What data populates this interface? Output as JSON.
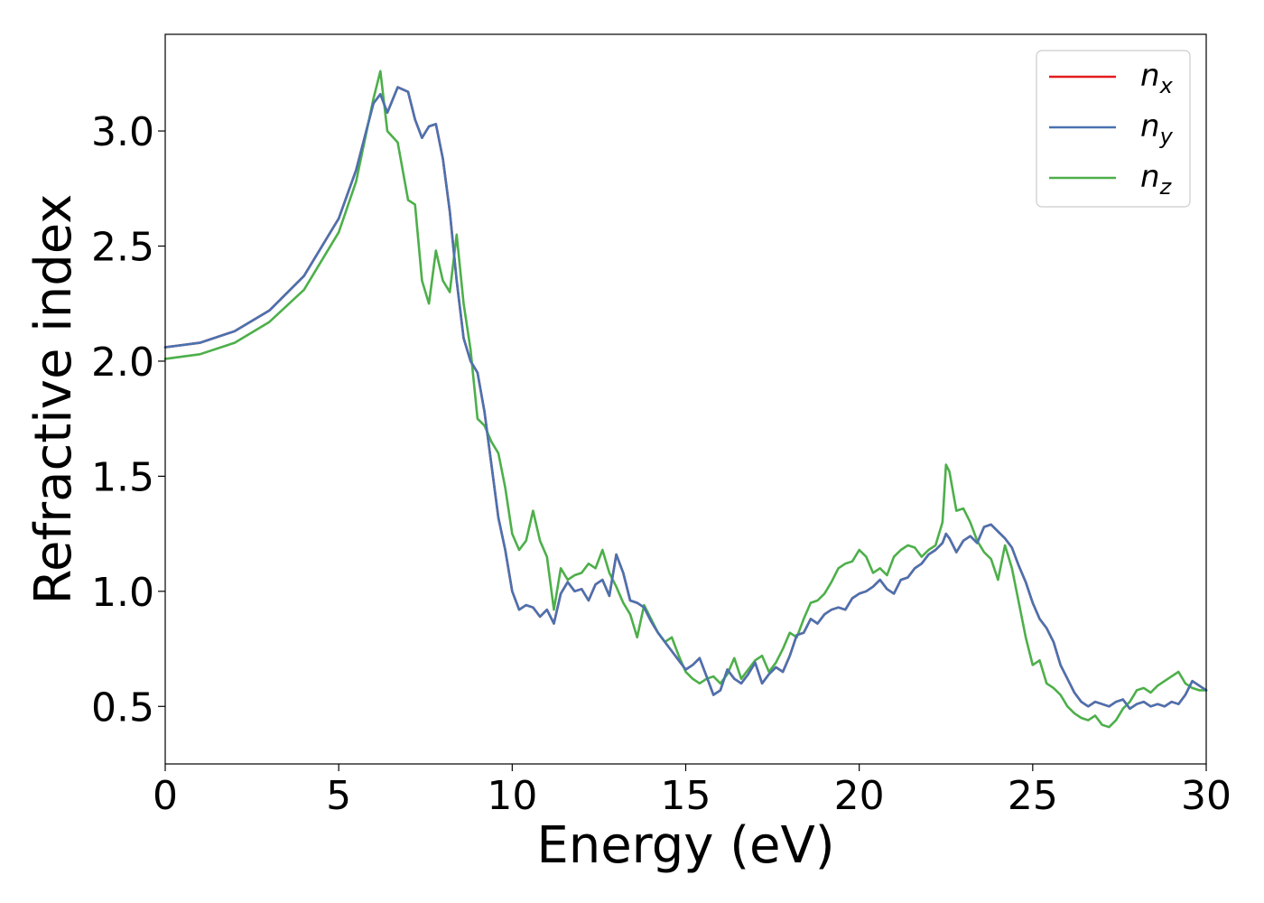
{
  "chart_data": {
    "type": "line",
    "title": "",
    "xlabel": "Energy (eV)",
    "ylabel": "Refractive index",
    "xlim": [
      0,
      30
    ],
    "ylim": [
      0.25,
      3.42
    ],
    "xticks": [
      0,
      5,
      10,
      15,
      20,
      25,
      30
    ],
    "xtick_labels": [
      "0",
      "5",
      "10",
      "15",
      "20",
      "25",
      "30"
    ],
    "yticks": [
      0.5,
      1.0,
      1.5,
      2.0,
      2.5,
      3.0
    ],
    "ytick_labels": [
      "0.5",
      "1.0",
      "1.5",
      "2.0",
      "2.5",
      "3.0"
    ],
    "grid": false,
    "legend_position": "top-right",
    "x": [
      0,
      1,
      2,
      3,
      4,
      5,
      5.5,
      6,
      6.2,
      6.4,
      6.7,
      7.0,
      7.2,
      7.4,
      7.6,
      7.8,
      8.0,
      8.2,
      8.4,
      8.6,
      8.8,
      9.0,
      9.2,
      9.4,
      9.6,
      9.8,
      10.0,
      10.2,
      10.4,
      10.6,
      10.8,
      11.0,
      11.2,
      11.4,
      11.6,
      11.8,
      12.0,
      12.2,
      12.4,
      12.6,
      12.8,
      13.0,
      13.2,
      13.4,
      13.6,
      13.8,
      14.0,
      14.2,
      14.4,
      14.6,
      14.8,
      15.0,
      15.2,
      15.4,
      15.6,
      15.8,
      16.0,
      16.2,
      16.4,
      16.6,
      16.8,
      17.0,
      17.2,
      17.4,
      17.6,
      17.8,
      18.0,
      18.2,
      18.4,
      18.6,
      18.8,
      19.0,
      19.2,
      19.4,
      19.6,
      19.8,
      20.0,
      20.2,
      20.4,
      20.6,
      20.8,
      21.0,
      21.2,
      21.4,
      21.6,
      21.8,
      22.0,
      22.2,
      22.4,
      22.5,
      22.6,
      22.8,
      23.0,
      23.2,
      23.4,
      23.6,
      23.8,
      24.0,
      24.2,
      24.4,
      24.6,
      24.8,
      25.0,
      25.2,
      25.4,
      25.6,
      25.8,
      26.0,
      26.2,
      26.4,
      26.6,
      26.8,
      27.0,
      27.2,
      27.4,
      27.6,
      27.8,
      28.0,
      28.2,
      28.4,
      28.6,
      28.8,
      29.0,
      29.2,
      29.4,
      29.6,
      29.8,
      30.0
    ],
    "series": [
      {
        "name": "n_x",
        "label_main": "n",
        "label_sub": "x",
        "color": "#e41a1c",
        "values": [
          2.06,
          2.08,
          2.13,
          2.22,
          2.37,
          2.62,
          2.83,
          3.12,
          3.16,
          3.08,
          3.19,
          3.17,
          3.05,
          2.97,
          3.02,
          3.03,
          2.88,
          2.65,
          2.35,
          2.1,
          2.0,
          1.95,
          1.78,
          1.55,
          1.32,
          1.18,
          1.0,
          0.92,
          0.94,
          0.93,
          0.89,
          0.92,
          0.86,
          0.99,
          1.04,
          1.0,
          1.01,
          0.96,
          1.03,
          1.05,
          0.98,
          1.16,
          1.08,
          0.96,
          0.95,
          0.93,
          0.87,
          0.82,
          0.78,
          0.74,
          0.7,
          0.66,
          0.68,
          0.71,
          0.63,
          0.55,
          0.57,
          0.66,
          0.62,
          0.6,
          0.64,
          0.69,
          0.6,
          0.64,
          0.67,
          0.65,
          0.72,
          0.81,
          0.82,
          0.88,
          0.86,
          0.9,
          0.92,
          0.93,
          0.92,
          0.97,
          0.99,
          1.0,
          1.02,
          1.05,
          1.01,
          0.99,
          1.05,
          1.06,
          1.1,
          1.12,
          1.16,
          1.18,
          1.21,
          1.25,
          1.23,
          1.17,
          1.22,
          1.24,
          1.21,
          1.28,
          1.29,
          1.26,
          1.23,
          1.19,
          1.11,
          1.04,
          0.95,
          0.88,
          0.84,
          0.78,
          0.68,
          0.62,
          0.56,
          0.52,
          0.5,
          0.52,
          0.51,
          0.5,
          0.52,
          0.53,
          0.49,
          0.51,
          0.52,
          0.5,
          0.51,
          0.5,
          0.52,
          0.51,
          0.55,
          0.61,
          0.59,
          0.57
        ]
      },
      {
        "name": "n_y",
        "label_main": "n",
        "label_sub": "y",
        "color": "#4a72b0",
        "values": [
          2.06,
          2.08,
          2.13,
          2.22,
          2.37,
          2.62,
          2.83,
          3.12,
          3.16,
          3.08,
          3.19,
          3.17,
          3.05,
          2.97,
          3.02,
          3.03,
          2.88,
          2.65,
          2.35,
          2.1,
          2.0,
          1.95,
          1.78,
          1.55,
          1.32,
          1.18,
          1.0,
          0.92,
          0.94,
          0.93,
          0.89,
          0.92,
          0.86,
          0.99,
          1.04,
          1.0,
          1.01,
          0.96,
          1.03,
          1.05,
          0.98,
          1.16,
          1.08,
          0.96,
          0.95,
          0.93,
          0.87,
          0.82,
          0.78,
          0.74,
          0.7,
          0.66,
          0.68,
          0.71,
          0.63,
          0.55,
          0.57,
          0.66,
          0.62,
          0.6,
          0.64,
          0.69,
          0.6,
          0.64,
          0.67,
          0.65,
          0.72,
          0.81,
          0.82,
          0.88,
          0.86,
          0.9,
          0.92,
          0.93,
          0.92,
          0.97,
          0.99,
          1.0,
          1.02,
          1.05,
          1.01,
          0.99,
          1.05,
          1.06,
          1.1,
          1.12,
          1.16,
          1.18,
          1.21,
          1.25,
          1.23,
          1.17,
          1.22,
          1.24,
          1.21,
          1.28,
          1.29,
          1.26,
          1.23,
          1.19,
          1.11,
          1.04,
          0.95,
          0.88,
          0.84,
          0.78,
          0.68,
          0.62,
          0.56,
          0.52,
          0.5,
          0.52,
          0.51,
          0.5,
          0.52,
          0.53,
          0.49,
          0.51,
          0.52,
          0.5,
          0.51,
          0.5,
          0.52,
          0.51,
          0.55,
          0.61,
          0.59,
          0.57
        ]
      },
      {
        "name": "n_z",
        "label_main": "n",
        "label_sub": "z",
        "color": "#4daf4a",
        "values": [
          2.01,
          2.03,
          2.08,
          2.17,
          2.31,
          2.56,
          2.78,
          3.14,
          3.26,
          3.0,
          2.95,
          2.7,
          2.68,
          2.35,
          2.25,
          2.48,
          2.35,
          2.3,
          2.55,
          2.25,
          2.05,
          1.75,
          1.72,
          1.65,
          1.6,
          1.45,
          1.25,
          1.18,
          1.22,
          1.35,
          1.22,
          1.15,
          0.92,
          1.1,
          1.05,
          1.07,
          1.08,
          1.12,
          1.1,
          1.18,
          1.08,
          1.02,
          0.95,
          0.9,
          0.8,
          0.94,
          0.88,
          0.82,
          0.78,
          0.8,
          0.72,
          0.65,
          0.62,
          0.6,
          0.62,
          0.63,
          0.6,
          0.64,
          0.71,
          0.62,
          0.66,
          0.7,
          0.72,
          0.65,
          0.69,
          0.75,
          0.82,
          0.8,
          0.88,
          0.95,
          0.96,
          0.99,
          1.04,
          1.1,
          1.12,
          1.13,
          1.18,
          1.15,
          1.08,
          1.1,
          1.07,
          1.15,
          1.18,
          1.2,
          1.19,
          1.15,
          1.18,
          1.2,
          1.3,
          1.55,
          1.52,
          1.35,
          1.36,
          1.3,
          1.22,
          1.17,
          1.14,
          1.05,
          1.2,
          1.1,
          0.95,
          0.8,
          0.68,
          0.7,
          0.6,
          0.58,
          0.55,
          0.5,
          0.47,
          0.45,
          0.44,
          0.46,
          0.42,
          0.41,
          0.44,
          0.49,
          0.52,
          0.57,
          0.58,
          0.56,
          0.59,
          0.61,
          0.63,
          0.65,
          0.6,
          0.58,
          0.57,
          0.57
        ]
      }
    ]
  }
}
